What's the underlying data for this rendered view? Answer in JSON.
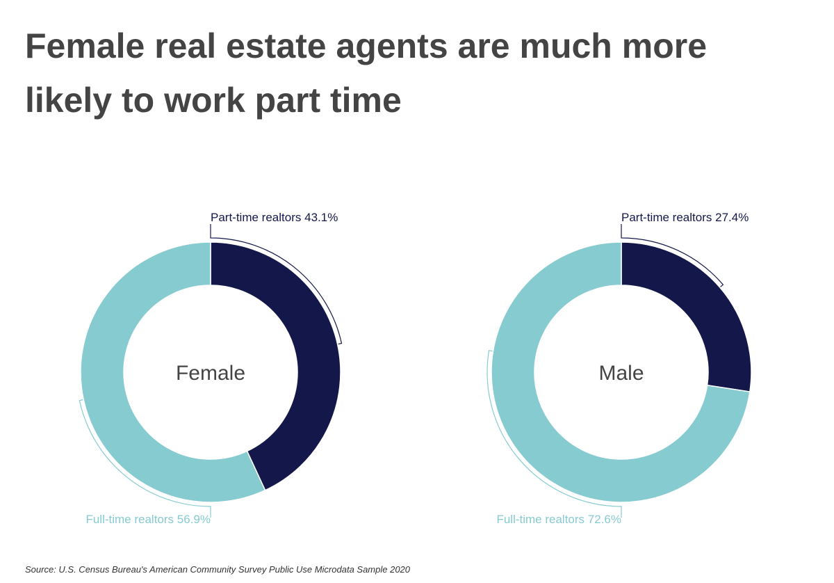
{
  "title": "Female real estate agents are much more likely to work part time",
  "source": "Source:  U.S. Census Bureau's American Community Survey Public Use Microdata Sample 2020",
  "chart_data": [
    {
      "type": "donut",
      "center_label": "Female",
      "categories": [
        "Part-time realtors",
        "Full-time realtors"
      ],
      "values": [
        43.1,
        56.9
      ],
      "value_labels": [
        "43.1%",
        "56.9%"
      ],
      "colors": [
        "#14174a",
        "#86cbd0"
      ]
    },
    {
      "type": "donut",
      "center_label": "Male",
      "categories": [
        "Part-time realtors",
        "Full-time realtors"
      ],
      "values": [
        27.4,
        72.6
      ],
      "value_labels": [
        "27.4%",
        "72.6%"
      ],
      "colors": [
        "#14174a",
        "#86cbd0"
      ]
    }
  ]
}
